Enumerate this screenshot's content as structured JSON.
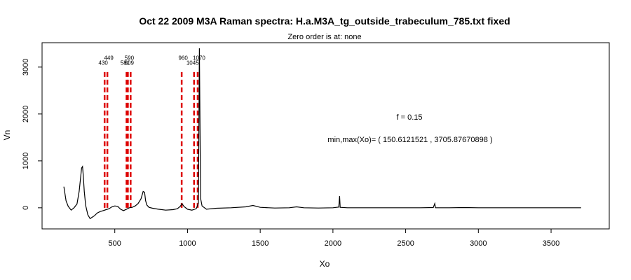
{
  "chart_data": {
    "type": "line",
    "title": "Oct 22 2009 M3A Raman spectra: H.a.M3A_tg_outside_trabeculum_785.txt fixed",
    "subtitle": "Zero order is at:  none",
    "xlabel": "Xo",
    "ylabel": "Vn",
    "xlim": [
      0,
      3900
    ],
    "ylim": [
      -450,
      3520
    ],
    "x_ticks": [
      500,
      1000,
      1500,
      2000,
      2500,
      3000,
      3500
    ],
    "y_ticks": [
      0,
      1000,
      2000,
      3000
    ],
    "grid": false,
    "legend": "none",
    "colors": {
      "spectrum": "#000000",
      "peak_markers": "#dd0000"
    },
    "annotations": {
      "f_label": "f =  0.15",
      "minmax_label": "min,max(Xo)= ( 150.6121521 , 3705.87670898 )"
    },
    "peak_markers": [
      {
        "x": 430,
        "label": "430",
        "top": 2900
      },
      {
        "x": 449,
        "label": "449",
        "top": 2900
      },
      {
        "x": 581,
        "label": "581",
        "top": 2900
      },
      {
        "x": 590,
        "label": "590",
        "top": 2900
      },
      {
        "x": 609,
        "label": "609",
        "top": 2900
      },
      {
        "x": 960,
        "label": "960",
        "top": 2900
      },
      {
        "x": 1045,
        "label": "1045",
        "top": 2900
      },
      {
        "x": 1070,
        "label": "1070",
        "top": 2900
      }
    ],
    "series": [
      {
        "x": [
          150,
          165,
          180,
          200,
          220,
          240,
          255,
          265,
          272,
          278,
          283,
          290,
          300,
          315,
          330,
          345,
          360,
          380,
          400,
          420,
          440,
          460,
          480,
          500,
          520,
          540,
          560,
          580,
          600,
          620,
          640,
          660,
          680,
          695,
          705,
          712,
          720,
          735,
          760,
          800,
          850,
          900,
          930,
          950,
          962,
          975,
          1000,
          1030,
          1060,
          1075,
          1082,
          1090,
          1100,
          1130,
          1200,
          1300,
          1400,
          1450,
          1500,
          1600,
          1700,
          1750,
          1800,
          1900,
          2000,
          2040,
          2046,
          2050,
          2100,
          2200,
          2300,
          2400,
          2500,
          2600,
          2690,
          2700,
          2705,
          2800,
          2900,
          3000,
          3100,
          3200,
          3300,
          3400,
          3500,
          3600,
          3706
        ],
        "y": [
          450,
          150,
          30,
          -50,
          0,
          80,
          350,
          650,
          850,
          880,
          700,
          350,
          50,
          -150,
          -230,
          -200,
          -170,
          -110,
          -80,
          -60,
          -40,
          -20,
          20,
          40,
          30,
          -30,
          -60,
          -30,
          0,
          10,
          40,
          90,
          190,
          350,
          330,
          150,
          60,
          10,
          -10,
          -30,
          -50,
          -40,
          -20,
          30,
          90,
          30,
          -30,
          -50,
          -20,
          100,
          3400,
          200,
          40,
          -30,
          -10,
          0,
          20,
          50,
          10,
          -5,
          0,
          20,
          0,
          -5,
          0,
          15,
          250,
          10,
          0,
          0,
          0,
          0,
          0,
          0,
          5,
          90,
          0,
          0,
          5,
          0,
          0,
          0,
          0,
          0,
          0,
          0,
          0
        ]
      }
    ]
  }
}
